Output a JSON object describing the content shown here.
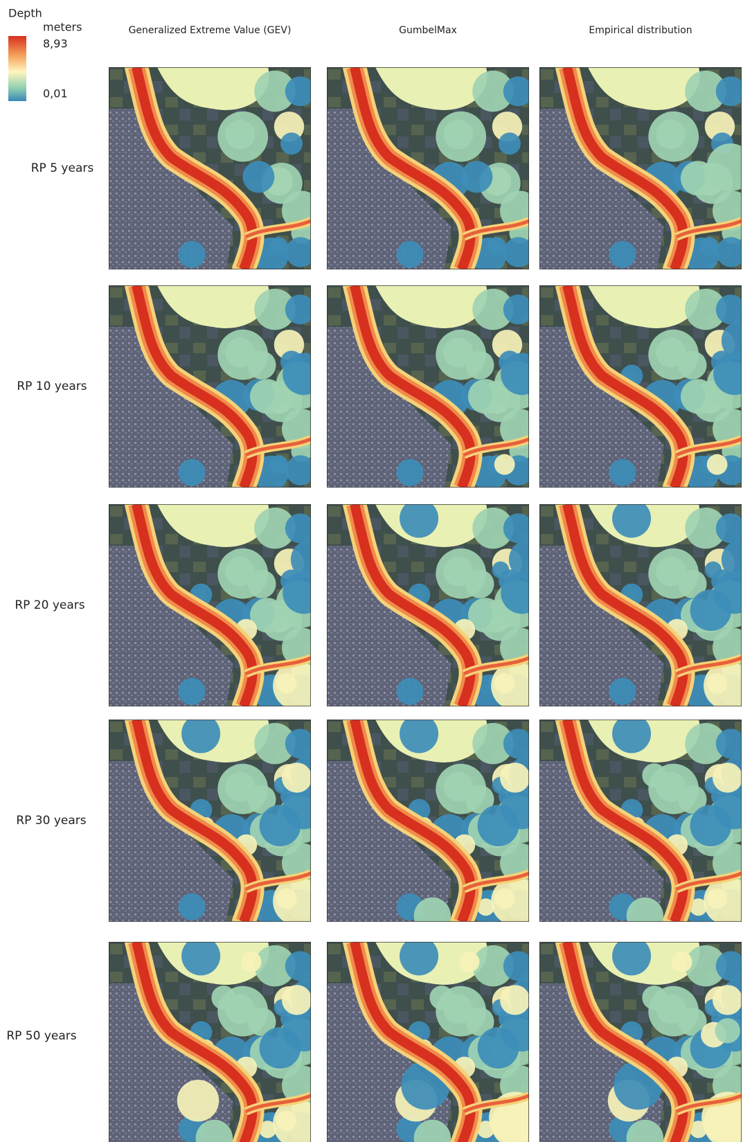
{
  "legend": {
    "title": "Depth",
    "unit": "meters",
    "max_label": "8,93",
    "min_label": "0,01"
  },
  "columns": [
    "Generalized Extreme Value (GEV)",
    "GumbelMax",
    "Empirical distribution"
  ],
  "rows": [
    "RP 5 years",
    "RP 10 years",
    "RP 20 years",
    "RP 30 years",
    "RP 50 years"
  ]
}
